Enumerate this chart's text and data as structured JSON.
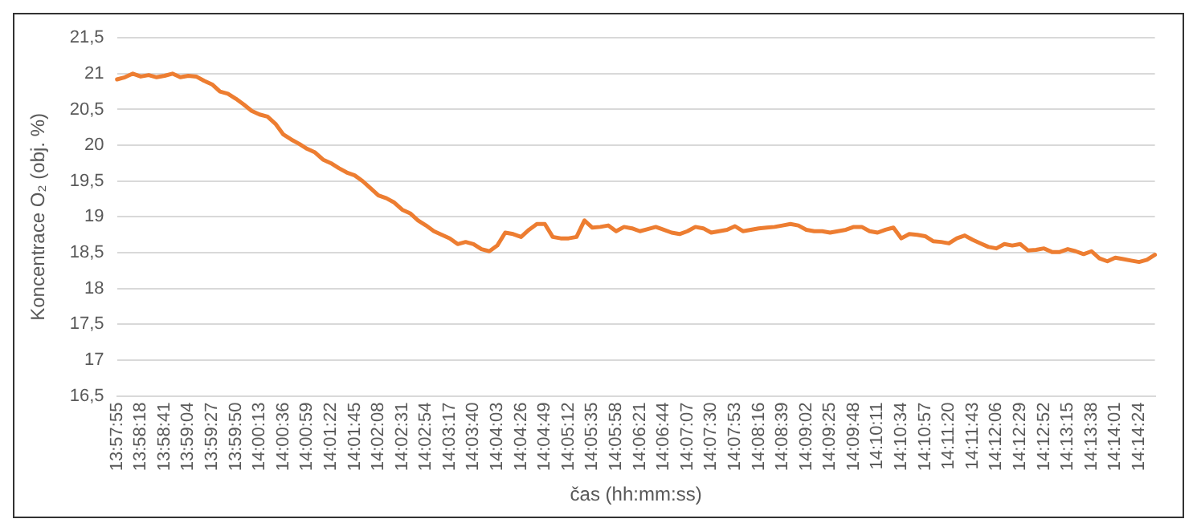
{
  "chart_data": {
    "type": "line",
    "xlabel": "čas (hh:mm:ss)",
    "ylabel": "Koncentrace O₂ (obj. %)",
    "categories": [
      "13:57:55",
      null,
      null,
      "13:58:18",
      null,
      null,
      "13:58:41",
      null,
      null,
      "13:59:04",
      null,
      null,
      "13:59:27",
      null,
      null,
      "13:59:50",
      null,
      null,
      "14:00:13",
      null,
      null,
      "14:00:36",
      null,
      null,
      "14:00:59",
      null,
      null,
      "14:01:22",
      null,
      null,
      "14:01:45",
      null,
      null,
      "14:02:08",
      null,
      null,
      "14:02:31",
      null,
      null,
      "14:02:54",
      null,
      null,
      "14:03:17",
      null,
      null,
      "14:03:40",
      null,
      null,
      "14:04:03",
      null,
      null,
      "14:04:26",
      null,
      null,
      "14:04:49",
      null,
      null,
      "14:05:12",
      null,
      null,
      "14:05:35",
      null,
      null,
      "14:05:58",
      null,
      null,
      "14:06:21",
      null,
      null,
      "14:06:44",
      null,
      null,
      "14:07:07",
      null,
      null,
      "14:07:30",
      null,
      null,
      "14:07:53",
      null,
      null,
      "14:08:16",
      null,
      null,
      "14:08:39",
      null,
      null,
      "14:09:02",
      null,
      null,
      "14:09:25",
      null,
      null,
      "14:09:48",
      null,
      null,
      "14:10:11",
      null,
      null,
      "14:10:34",
      null,
      null,
      "14:10:57",
      null,
      null,
      "14:11:20",
      null,
      null,
      "14:11:43",
      null,
      null,
      "14:12:06",
      null,
      null,
      "14:12:29",
      null,
      null,
      "14:12:52",
      null,
      null,
      "14:13:15",
      null,
      null,
      "14:13:38",
      null,
      null,
      "14:14:01",
      null,
      null,
      "14:14:24",
      null,
      null
    ],
    "series": [
      {
        "color": "#ed7d31",
        "values": [
          20.92,
          20.95,
          21.0,
          20.96,
          20.98,
          20.95,
          20.97,
          21.0,
          20.95,
          20.97,
          20.96,
          20.9,
          20.85,
          20.75,
          20.72,
          20.65,
          20.57,
          20.48,
          20.43,
          20.4,
          20.3,
          20.15,
          20.08,
          20.02,
          19.95,
          19.9,
          19.8,
          19.75,
          19.68,
          19.62,
          19.58,
          19.5,
          19.4,
          19.3,
          19.26,
          19.2,
          19.1,
          19.05,
          18.95,
          18.88,
          18.8,
          18.75,
          18.7,
          18.62,
          18.65,
          18.62,
          18.55,
          18.52,
          18.6,
          18.78,
          18.76,
          18.72,
          18.82,
          18.9,
          18.9,
          18.72,
          18.7,
          18.7,
          18.72,
          18.95,
          18.85,
          18.86,
          18.88,
          18.8,
          18.86,
          18.84,
          18.8,
          18.83,
          18.86,
          18.82,
          18.78,
          18.76,
          18.8,
          18.86,
          18.84,
          18.78,
          18.8,
          18.82,
          18.87,
          18.8,
          18.82,
          18.84,
          18.85,
          18.86,
          18.88,
          18.9,
          18.88,
          18.82,
          18.8,
          18.8,
          18.78,
          18.8,
          18.82,
          18.86,
          18.86,
          18.8,
          18.78,
          18.82,
          18.85,
          18.7,
          18.76,
          18.75,
          18.73,
          18.66,
          18.65,
          18.63,
          18.7,
          18.74,
          18.68,
          18.63,
          18.58,
          18.56,
          18.62,
          18.6,
          18.62,
          18.53,
          18.54,
          18.56,
          18.51,
          18.51,
          18.55,
          18.52,
          18.48,
          18.52,
          18.42,
          18.38,
          18.43,
          18.41,
          18.39,
          18.37,
          18.4,
          18.47
        ]
      }
    ],
    "ylim": [
      16.5,
      21.5
    ],
    "yticks": [
      {
        "value": 16.5,
        "label": "16,5"
      },
      17,
      {
        "value": 17.5,
        "label": "17,5"
      },
      18,
      {
        "value": 18.5,
        "label": "18,5"
      },
      19,
      {
        "value": 19.5,
        "label": "19,5"
      },
      20,
      {
        "value": 20.5,
        "label": "20,5"
      },
      21,
      {
        "value": 21.5,
        "label": "21,5"
      }
    ],
    "grid": "y",
    "legend": false,
    "marker": "none",
    "line_style": "solid"
  }
}
